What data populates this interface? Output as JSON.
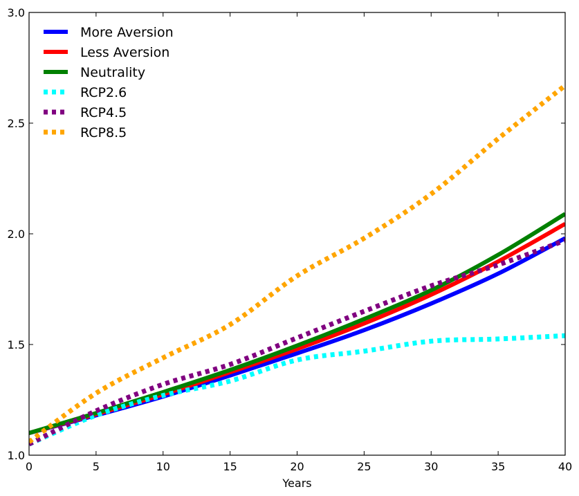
{
  "chart_data": {
    "type": "line",
    "title": "",
    "xlabel": "Years",
    "ylabel": "",
    "xlim": [
      0,
      40
    ],
    "ylim": [
      1.0,
      3.0
    ],
    "xticks": [
      "0",
      "5",
      "10",
      "15",
      "20",
      "25",
      "30",
      "35",
      "40"
    ],
    "yticks": [
      "1.0",
      "1.5",
      "2.0",
      "2.5",
      "3.0"
    ],
    "grid": false,
    "legend_position": "top-left",
    "series": [
      {
        "name": "More Aversion",
        "color": "#0000ff",
        "style": "solid",
        "x": [
          0,
          5,
          10,
          15,
          20,
          25,
          30,
          35,
          40
        ],
        "y": [
          1.1,
          1.18,
          1.265,
          1.36,
          1.46,
          1.565,
          1.685,
          1.82,
          1.98
        ]
      },
      {
        "name": "Less Aversion",
        "color": "#ff0000",
        "style": "solid",
        "x": [
          0,
          5,
          10,
          15,
          20,
          25,
          30,
          35,
          40
        ],
        "y": [
          1.1,
          1.185,
          1.275,
          1.375,
          1.48,
          1.595,
          1.725,
          1.875,
          2.045
        ]
      },
      {
        "name": "Neutrality",
        "color": "#008000",
        "style": "solid",
        "x": [
          0,
          5,
          10,
          15,
          20,
          25,
          30,
          35,
          40
        ],
        "y": [
          1.1,
          1.19,
          1.285,
          1.385,
          1.495,
          1.615,
          1.745,
          1.905,
          2.09
        ]
      },
      {
        "name": "RCP2.6",
        "color": "#00ffff",
        "style": "dotted",
        "x": [
          0,
          5,
          10,
          15,
          20,
          25,
          30,
          35,
          40
        ],
        "y": [
          1.05,
          1.18,
          1.27,
          1.335,
          1.43,
          1.47,
          1.515,
          1.525,
          1.54
        ]
      },
      {
        "name": "RCP4.5",
        "color": "#800080",
        "style": "dotted",
        "x": [
          0,
          5,
          10,
          15,
          20,
          25,
          30,
          35,
          40
        ],
        "y": [
          1.05,
          1.2,
          1.32,
          1.41,
          1.53,
          1.65,
          1.765,
          1.86,
          1.97
        ]
      },
      {
        "name": "RCP8.5",
        "color": "#ffa500",
        "style": "dotted",
        "x": [
          0,
          5,
          10,
          15,
          20,
          25,
          30,
          35,
          40
        ],
        "y": [
          1.06,
          1.28,
          1.44,
          1.59,
          1.81,
          1.98,
          2.18,
          2.43,
          2.67
        ]
      }
    ]
  }
}
